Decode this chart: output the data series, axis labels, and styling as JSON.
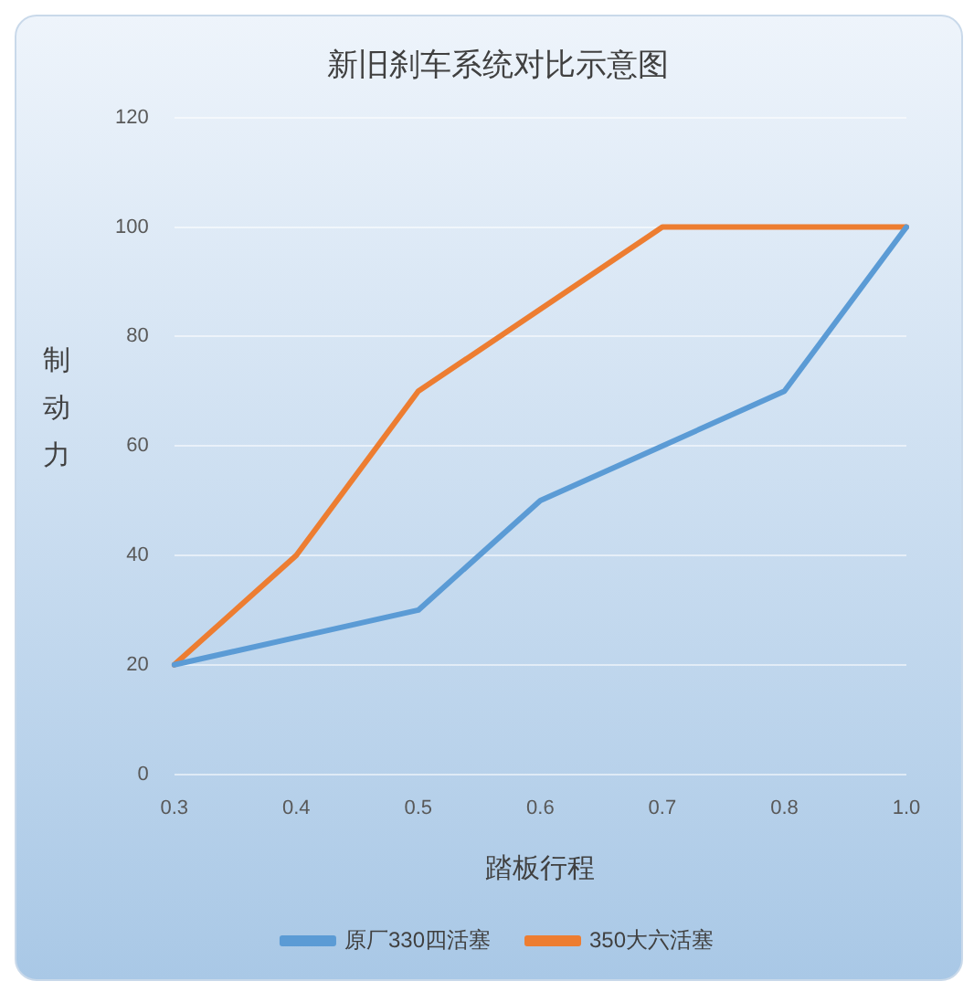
{
  "chart_data": {
    "type": "line",
    "title": "新旧刹车系统对比示意图",
    "xlabel": "踏板行程",
    "ylabel": "制动力",
    "categories": [
      "0.3",
      "0.4",
      "0.5",
      "0.6",
      "0.7",
      "0.8",
      "1.0"
    ],
    "series": [
      {
        "name": "原厂330四活塞",
        "color": "#5b9bd5",
        "values": [
          20,
          25,
          30,
          50,
          60,
          70,
          100
        ]
      },
      {
        "name": "350大六活塞",
        "color": "#ed7d31",
        "values": [
          20,
          40,
          70,
          85,
          100,
          100,
          100
        ]
      }
    ],
    "ylim": [
      0,
      120
    ],
    "yticks": [
      0,
      20,
      40,
      60,
      80,
      100,
      120
    ],
    "grid": "y",
    "legend": "bottom",
    "marker": "none",
    "line_style": "solid"
  }
}
